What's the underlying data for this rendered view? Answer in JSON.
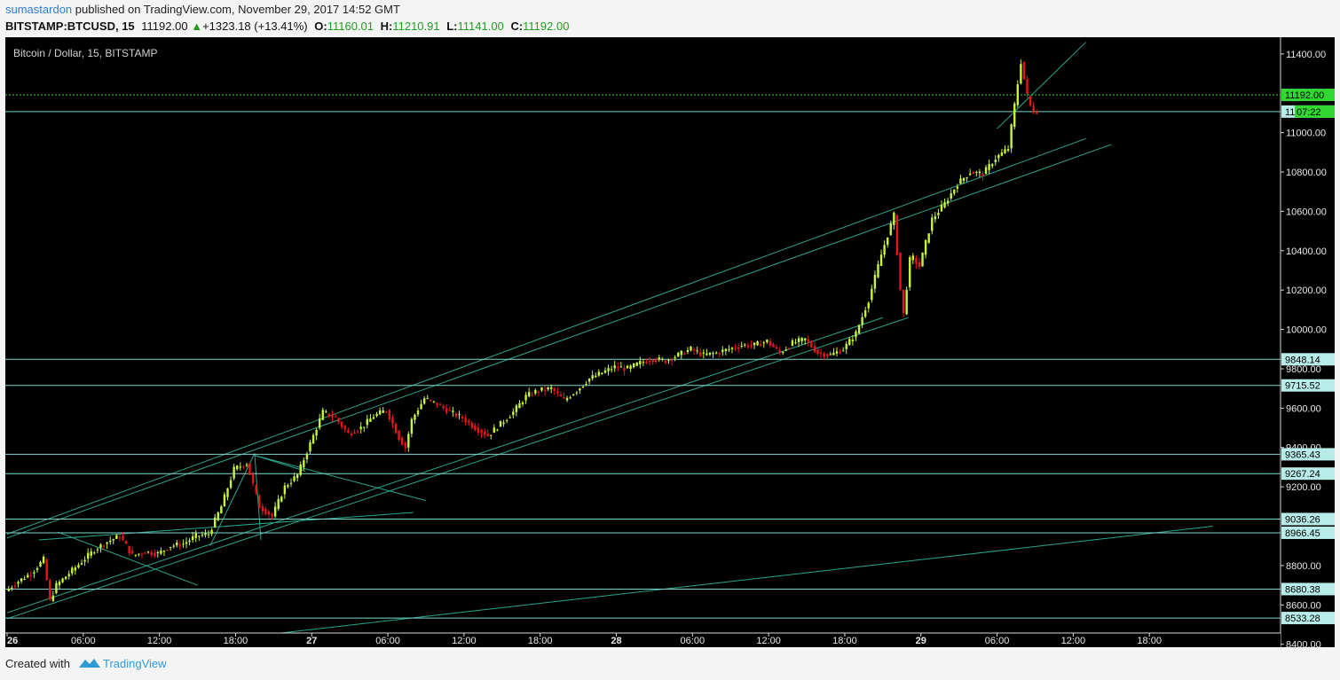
{
  "header": {
    "author": "sumastardon",
    "published_text": "published on TradingView.com, November 29, 2017 14:52 GMT",
    "symbol": "BITSTAMP:BTCUSD, 15",
    "last": "11192.00",
    "change": "+1323.18 (+13.41%)",
    "open_label": "O:",
    "open": "11160.01",
    "high_label": "H:",
    "high": "11210.91",
    "low_label": "L:",
    "low": "11141.00",
    "close_label": "C:",
    "close": "11192.00"
  },
  "footer": {
    "created_with": "Created with",
    "brand": "TradingView"
  },
  "colors": {
    "background": "#000000",
    "up": "#c8f53c",
    "down": "#e8151a",
    "trendline": "#2aa58c",
    "hline": "#7fd7d0",
    "price_line": "#32d732",
    "axis_label_bg": "#b8ece8",
    "current_bg": "#32d732"
  },
  "chart_data": {
    "type": "candlestick",
    "title": "Bitcoin / Dollar, 15, BITSTAMP",
    "interval": "15",
    "y_axis_ticks": [
      "11400.00",
      "11000.00",
      "10800.00",
      "10600.00",
      "10400.00",
      "10200.00",
      "10000.00",
      "9800.00",
      "9600.00",
      "9400.00",
      "9200.00",
      "8800.00",
      "8600.00",
      "8400.00"
    ],
    "ylim": [
      8385,
      11485
    ],
    "x_axis_ticks": [
      "26",
      "06:00",
      "12:00",
      "18:00",
      "27",
      "06:00",
      "12:00",
      "18:00",
      "28",
      "06:00",
      "12:00",
      "18:00",
      "29",
      "06:00",
      "12:00",
      "18:00"
    ],
    "x_range_hours": [
      0,
      96
    ],
    "price_levels": [
      {
        "label": "9848.14",
        "value": 9848.14
      },
      {
        "label": "9715.52",
        "value": 9715.52
      },
      {
        "label": "9365.43",
        "value": 9365.43
      },
      {
        "label": "9267.24",
        "value": 9267.24
      },
      {
        "label": "9036.26",
        "value": 9036.26
      },
      {
        "label": "8966.45",
        "value": 8966.45
      },
      {
        "label": "8680.38",
        "value": 8680.38
      },
      {
        "label": "8533.28",
        "value": 8533.28
      },
      {
        "label": "11107.22",
        "value": 11107.22
      }
    ],
    "current_price": {
      "label": "11192.00",
      "value": 11192.0
    },
    "countdown": "07:22",
    "price_path": [
      [
        0,
        8670
      ],
      [
        1,
        8720
      ],
      [
        2,
        8760
      ],
      [
        3,
        8830
      ],
      [
        3.5,
        8620
      ],
      [
        4,
        8700
      ],
      [
        5,
        8760
      ],
      [
        6,
        8820
      ],
      [
        7,
        8880
      ],
      [
        8,
        8920
      ],
      [
        9,
        8950
      ],
      [
        10,
        8850
      ],
      [
        11,
        8870
      ],
      [
        12,
        8860
      ],
      [
        13,
        8900
      ],
      [
        14,
        8910
      ],
      [
        15,
        8950
      ],
      [
        16,
        8960
      ],
      [
        17,
        9100
      ],
      [
        18,
        9290
      ],
      [
        19,
        9320
      ],
      [
        20,
        9100
      ],
      [
        21,
        9050
      ],
      [
        22,
        9200
      ],
      [
        23,
        9260
      ],
      [
        24,
        9420
      ],
      [
        25,
        9580
      ],
      [
        26,
        9550
      ],
      [
        27,
        9470
      ],
      [
        28,
        9500
      ],
      [
        29,
        9560
      ],
      [
        30,
        9590
      ],
      [
        31,
        9450
      ],
      [
        31.5,
        9400
      ],
      [
        32,
        9540
      ],
      [
        33,
        9650
      ],
      [
        34,
        9620
      ],
      [
        35,
        9580
      ],
      [
        36,
        9550
      ],
      [
        37,
        9500
      ],
      [
        38,
        9460
      ],
      [
        39,
        9520
      ],
      [
        40,
        9580
      ],
      [
        41,
        9660
      ],
      [
        42,
        9690
      ],
      [
        43,
        9700
      ],
      [
        44,
        9640
      ],
      [
        45,
        9690
      ],
      [
        46,
        9750
      ],
      [
        47,
        9780
      ],
      [
        48,
        9810
      ],
      [
        49,
        9800
      ],
      [
        50,
        9830
      ],
      [
        51,
        9850
      ],
      [
        52,
        9840
      ],
      [
        53,
        9870
      ],
      [
        54,
        9900
      ],
      [
        55,
        9870
      ],
      [
        56,
        9880
      ],
      [
        57,
        9900
      ],
      [
        58,
        9920
      ],
      [
        59,
        9920
      ],
      [
        60,
        9940
      ],
      [
        61,
        9880
      ],
      [
        62,
        9930
      ],
      [
        63,
        9950
      ],
      [
        64,
        9880
      ],
      [
        65,
        9870
      ],
      [
        66,
        9900
      ],
      [
        67,
        9980
      ],
      [
        68,
        10150
      ],
      [
        69,
        10380
      ],
      [
        70,
        10580
      ],
      [
        70.7,
        10050
      ],
      [
        71.3,
        10380
      ],
      [
        72,
        10320
      ],
      [
        73,
        10560
      ],
      [
        74,
        10640
      ],
      [
        75,
        10740
      ],
      [
        76,
        10800
      ],
      [
        77,
        10790
      ],
      [
        78,
        10870
      ],
      [
        79,
        10920
      ],
      [
        80,
        11360
      ],
      [
        80.6,
        11150
      ],
      [
        81,
        11110
      ]
    ],
    "trendlines": [
      {
        "from": [
          0,
          8960
        ],
        "to": [
          85,
          10970
        ]
      },
      {
        "from": [
          0,
          8940
        ],
        "to": [
          87,
          10940
        ]
      },
      {
        "from": [
          0,
          8560
        ],
        "to": [
          69,
          10060
        ]
      },
      {
        "from": [
          0,
          8530
        ],
        "to": [
          71,
          10060
        ]
      },
      {
        "from": [
          12.5,
          8390
        ],
        "to": [
          95,
          9000
        ]
      },
      {
        "from": [
          2.5,
          8930
        ],
        "to": [
          32,
          9070
        ]
      },
      {
        "from": [
          4,
          8970
        ],
        "to": [
          15,
          8700
        ]
      },
      {
        "from": [
          16,
          8900
        ],
        "to": [
          19.5,
          9370
        ]
      },
      {
        "from": [
          19.5,
          9370
        ],
        "to": [
          20,
          8930
        ]
      },
      {
        "from": [
          19.5,
          9360
        ],
        "to": [
          33,
          9130
        ]
      },
      {
        "from": [
          19.5,
          9360
        ],
        "to": [
          23.5,
          9280
        ]
      },
      {
        "from": [
          78,
          11020
        ],
        "to": [
          85,
          11460
        ]
      }
    ]
  }
}
